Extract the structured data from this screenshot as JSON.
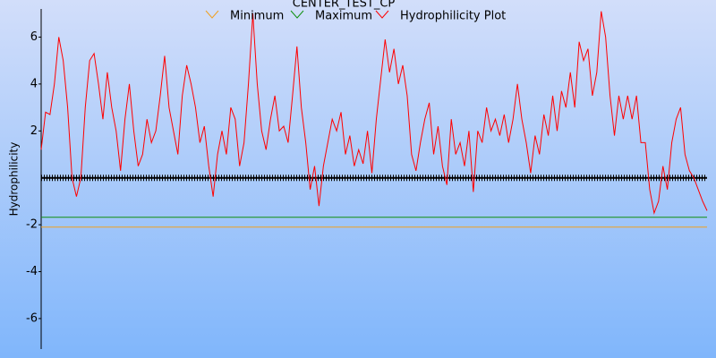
{
  "chart_data": {
    "type": "line",
    "title": "CENTER_TEST_CP",
    "y_label": "Hydrophilicity",
    "ylim": [
      -7.3,
      7.2
    ],
    "yticks": [
      -6,
      -4,
      -2,
      2,
      4,
      6
    ],
    "series": [
      {
        "name": "Minimum",
        "color": "#f0a020",
        "values": [
          -2.1,
          -2.1
        ]
      },
      {
        "name": "Maximum",
        "color": "#109010",
        "values": [
          -1.68,
          -1.68
        ]
      },
      {
        "name": "Hydrophilicity Plot",
        "color": "#ff0000",
        "values": [
          1.2,
          2.8,
          2.7,
          4,
          6,
          5,
          3,
          0,
          -0.8,
          0,
          3,
          5,
          5.3,
          4,
          2.5,
          4.5,
          3,
          2,
          0.3,
          2.5,
          4,
          2,
          0.5,
          1,
          2.5,
          1.5,
          2,
          3.5,
          5.2,
          3,
          2,
          1,
          3.5,
          4.8,
          4,
          3,
          1.5,
          2.2,
          0.5,
          -0.8,
          1,
          2,
          1,
          3,
          2.5,
          0.5,
          1.5,
          4,
          7,
          4,
          2,
          1.2,
          2.5,
          3.5,
          2,
          2.2,
          1.5,
          3.5,
          5.6,
          3,
          1.5,
          -0.5,
          0.5,
          -1.2,
          0.5,
          1.5,
          2.5,
          2,
          2.8,
          1,
          1.8,
          0.5,
          1.2,
          0.6,
          2,
          0.2,
          2.5,
          4.2,
          5.9,
          4.5,
          5.5,
          4,
          4.8,
          3.5,
          1,
          0.3,
          1.5,
          2.5,
          3.2,
          1,
          2.2,
          0.5,
          -0.3,
          2.5,
          1,
          1.5,
          0.5,
          2,
          -0.6,
          2,
          1.5,
          3,
          2,
          2.5,
          1.8,
          2.7,
          1.5,
          2.5,
          4,
          2.5,
          1.5,
          0.2,
          1.8,
          1,
          2.7,
          1.8,
          3.5,
          2,
          3.7,
          3,
          4.5,
          3,
          5.8,
          5,
          5.5,
          3.5,
          4.5,
          7.1,
          6,
          3.5,
          1.8,
          3.5,
          2.5,
          3.5,
          2.5,
          3.5,
          1.5,
          1.5,
          -0.5,
          -1.5,
          -1,
          0.5,
          -0.5,
          1.5,
          2.5,
          3,
          1,
          0.3,
          0,
          -0.5,
          -1,
          -1.4
        ]
      }
    ]
  }
}
